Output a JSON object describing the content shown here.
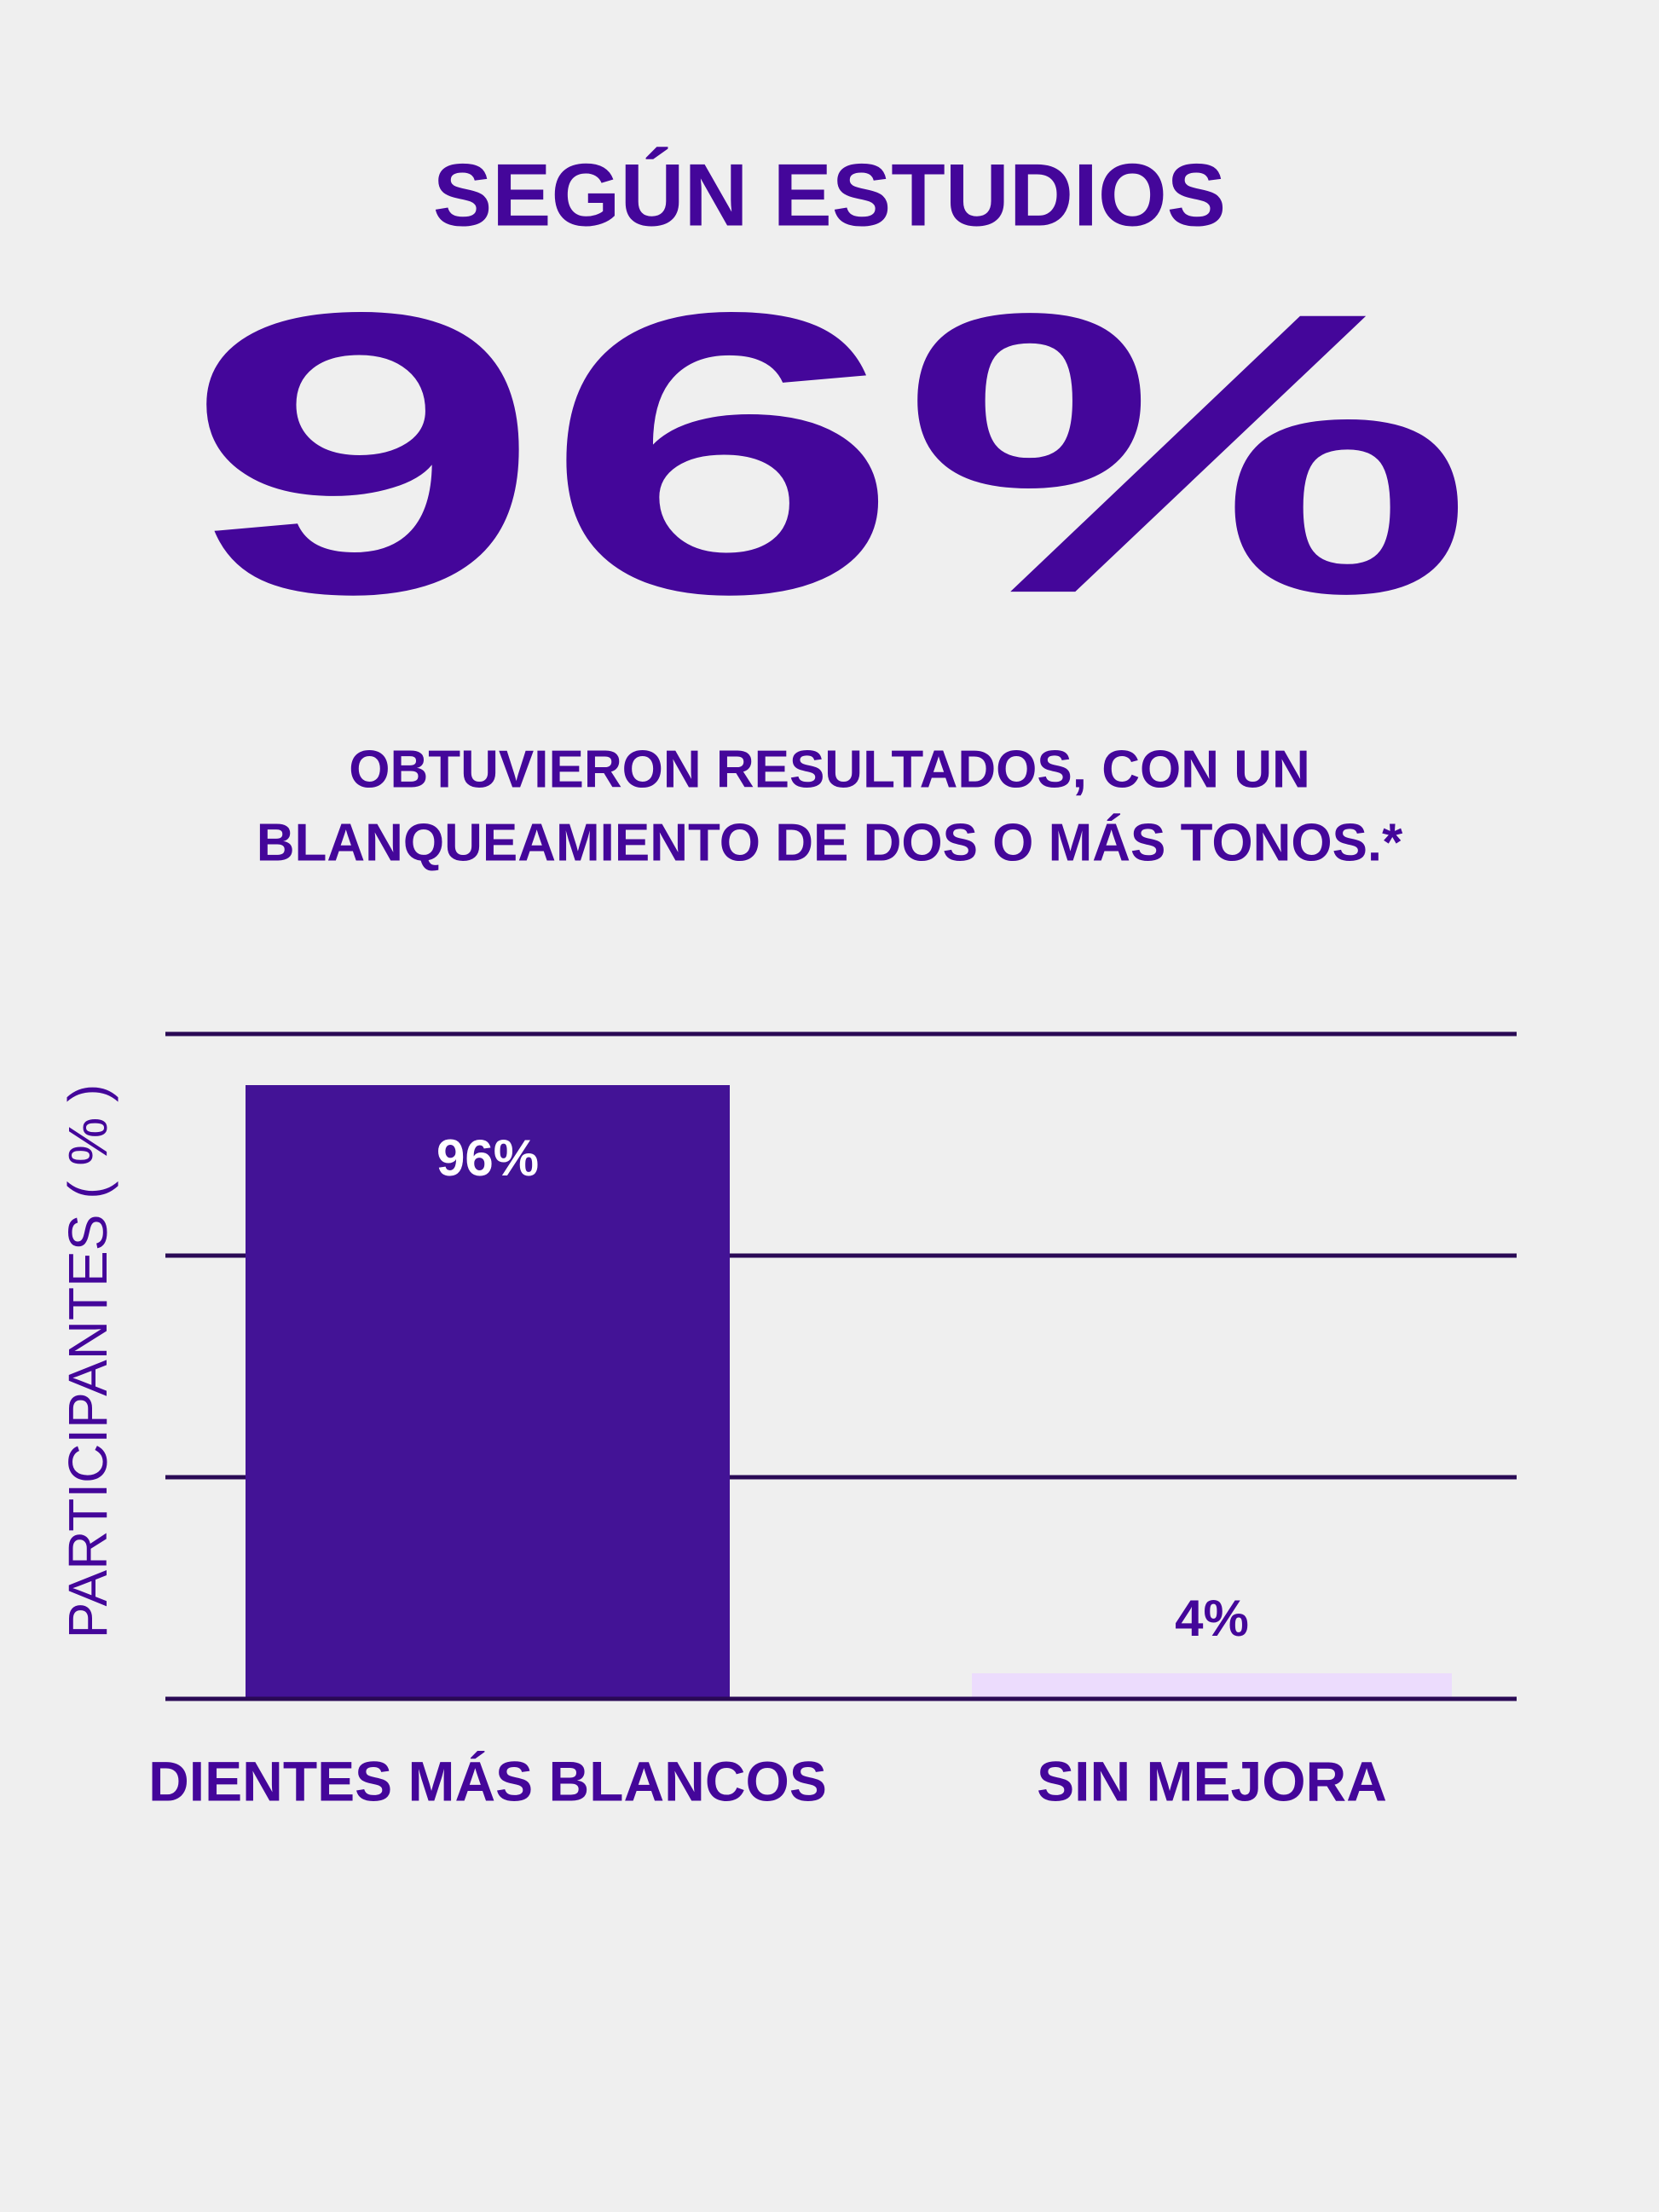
{
  "chart_data": {
    "type": "bar",
    "title": "SEGÚN ESTUDIOS",
    "headline": "96%",
    "subtitle": [
      "OBTUVIERON RESULTADOS, CON UN",
      "BLANQUEAMIENTO DE DOS O MÁS TONOS.*"
    ],
    "y_label": "PARTICIPANTES ( % )",
    "categories": [
      "DIENTES MÁS BLANCOS",
      "SIN MEJORA"
    ],
    "values": [
      96,
      4
    ],
    "value_labels": [
      "96%",
      "4%"
    ],
    "colors": [
      "#431396",
      "#ecdcfd"
    ],
    "ylim": [
      0,
      104
    ]
  }
}
